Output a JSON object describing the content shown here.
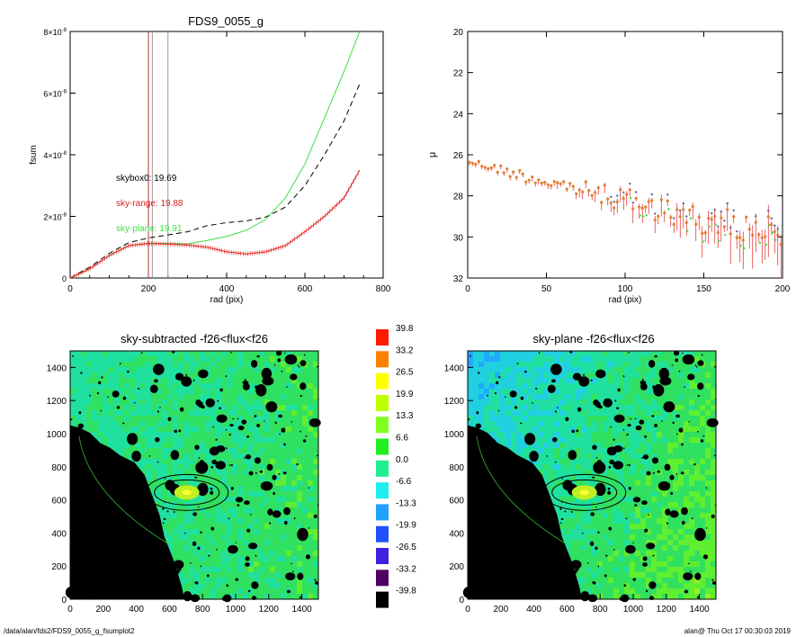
{
  "colors": {
    "sky_range": "#e02020",
    "sky_plane": "#40dd40",
    "skybox": "#000000",
    "marker_vlines": "#c03030",
    "grey_vline": "#999999"
  },
  "chart_data": [
    {
      "type": "line",
      "title": "FDS9_0055_g",
      "xlabel": "rad (pix)",
      "ylabel": "fsum",
      "xlim": [
        0,
        800
      ],
      "ylim": [
        0,
        8e-08
      ],
      "xticks": [
        "0",
        "200",
        "400",
        "600",
        "800"
      ],
      "yticks": [
        {
          "base": "0",
          "exp": ""
        },
        {
          "base": "2×10",
          "exp": "-8"
        },
        {
          "base": "4×10",
          "exp": "-8"
        },
        {
          "base": "6×10",
          "exp": "-8"
        },
        {
          "base": "8×10",
          "exp": "-8"
        }
      ],
      "annotations": {
        "skybox0": "skybox0: 19.69",
        "sky_range": "sky-range: 19.88",
        "sky_plane": "sky-plane: 19.91"
      },
      "vlines": [
        200,
        210,
        250
      ],
      "series": [
        {
          "id": "skybox0",
          "style": "dashed",
          "x": [
            0,
            50,
            100,
            150,
            200,
            250,
            300,
            350,
            400,
            450,
            500,
            550,
            600,
            650,
            700,
            740
          ],
          "y": [
            0,
            3.5e-09,
            8e-09,
            1.15e-08,
            1.3e-08,
            1.4e-08,
            1.5e-08,
            1.7e-08,
            1.8e-08,
            1.85e-08,
            1.98e-08,
            2.3e-08,
            3e-08,
            4e-08,
            5.1e-08,
            6.3e-08
          ]
        },
        {
          "id": "sky_plane",
          "style": "solid",
          "x": [
            0,
            50,
            100,
            150,
            200,
            250,
            300,
            350,
            400,
            450,
            500,
            550,
            600,
            650,
            700,
            740
          ],
          "y": [
            0,
            3e-09,
            7.3e-09,
            1.05e-08,
            1.13e-08,
            1.12e-08,
            1.1e-08,
            1.22e-08,
            1.35e-08,
            1.55e-08,
            1.9e-08,
            2.6e-08,
            3.7e-08,
            5.2e-08,
            6.7e-08,
            8e-08
          ]
        },
        {
          "id": "sky_range",
          "style": "solid",
          "x": [
            0,
            50,
            100,
            150,
            200,
            250,
            300,
            350,
            400,
            450,
            500,
            550,
            600,
            650,
            700,
            740
          ],
          "y": [
            0,
            3e-09,
            7.3e-09,
            1.05e-08,
            1.12e-08,
            1.1e-08,
            1.07e-08,
            1e-08,
            8.5e-09,
            7.8e-09,
            8.5e-09,
            1.05e-08,
            1.5e-08,
            2e-08,
            2.6e-08,
            3.5e-08
          ]
        }
      ]
    },
    {
      "type": "scatter",
      "title": "",
      "xlabel": "rad (pix)",
      "ylabel": "μ",
      "xlim": [
        0,
        200
      ],
      "ylim": [
        32,
        20
      ],
      "xticks": [
        "0",
        "50",
        "100",
        "150",
        "200"
      ],
      "yticks": [
        "20",
        "22",
        "24",
        "26",
        "28",
        "30",
        "32"
      ],
      "series": [
        {
          "id": "profile",
          "x_start": 1,
          "x_end": 200,
          "x_step": 2,
          "mu_trend": [
            [
              0,
              26.3
            ],
            [
              50,
              27.3
            ],
            [
              100,
              28.2
            ],
            [
              150,
              29.2
            ],
            [
              200,
              30.0
            ]
          ]
        }
      ]
    },
    {
      "type": "heatmap",
      "title": "sky-subtracted -f26<flux<f26",
      "xlim": [
        0,
        1500
      ],
      "ylim": [
        0,
        1500
      ],
      "xticks": [
        "0",
        "200",
        "400",
        "600",
        "800",
        "1000",
        "1200",
        "1400"
      ],
      "yticks": [
        "0",
        "200",
        "400",
        "600",
        "800",
        "1000",
        "1200",
        "1400"
      ]
    },
    {
      "type": "heatmap",
      "title": "sky-plane -f26<flux<f26",
      "xlim": [
        0,
        1500
      ],
      "ylim": [
        0,
        1500
      ],
      "xticks": [
        "0",
        "200",
        "400",
        "600",
        "800",
        "1000",
        "1200",
        "1400"
      ],
      "yticks": [
        "0",
        "200",
        "400",
        "600",
        "800",
        "1000",
        "1200",
        "1400"
      ]
    }
  ],
  "colorbar": {
    "labels": [
      "39.8",
      "33.2",
      "26.5",
      "19.9",
      "13.3",
      "6.6",
      "0.0",
      "-6.6",
      "-13.3",
      "-19.9",
      "-26.5",
      "-33.2",
      "-39.8"
    ],
    "colors": [
      "#ff1a00",
      "#ff8000",
      "#ffff00",
      "#bfff00",
      "#80ff20",
      "#20ee20",
      "#20ee90",
      "#20eeee",
      "#20a0ff",
      "#2050ff",
      "#4020e0",
      "#500060",
      "#000000"
    ]
  },
  "footer": {
    "left": "/data/alan/fds2/FDS9_0055_g_fsumplot2",
    "right": "alan@  Thu Oct 17 00:30:03 2019"
  }
}
